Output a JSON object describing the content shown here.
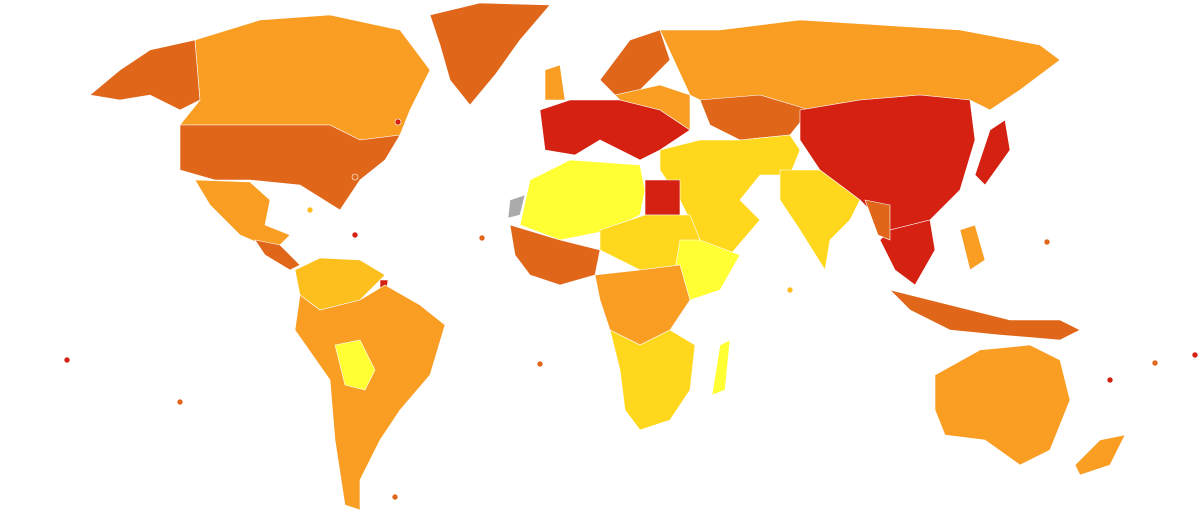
{
  "map": {
    "palette": {
      "red": "#d42111",
      "dark": "#e0661a",
      "orange": "#f99d23",
      "amber": "#fdbf1e",
      "gold": "#ffd81e",
      "yellow": "#ffff33",
      "nodata": "#aaaaaa"
    }
  }
}
